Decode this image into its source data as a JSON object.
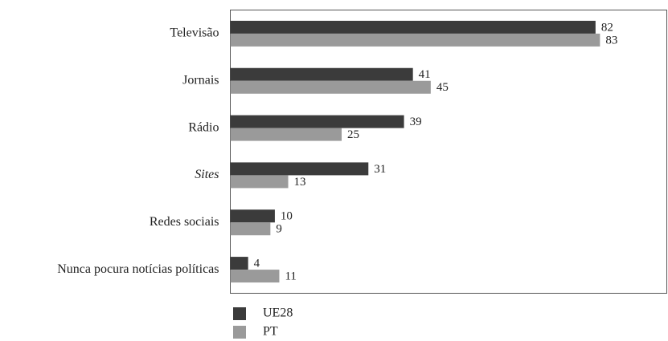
{
  "chart_data": {
    "type": "bar",
    "orientation": "horizontal",
    "categories": [
      "Televisão",
      "Jornais",
      "Rádio",
      "Sites",
      "Redes sociais",
      "Nunca pocura notícias políticas"
    ],
    "series": [
      {
        "name": "UE28",
        "color": "#3b3b3b",
        "values": [
          82,
          41,
          39,
          31,
          10,
          4
        ]
      },
      {
        "name": "PT",
        "color": "#9a9a9a",
        "values": [
          83,
          45,
          25,
          13,
          9,
          11
        ]
      }
    ],
    "xlim": [
      0,
      98
    ],
    "legend": "bottom-left"
  }
}
